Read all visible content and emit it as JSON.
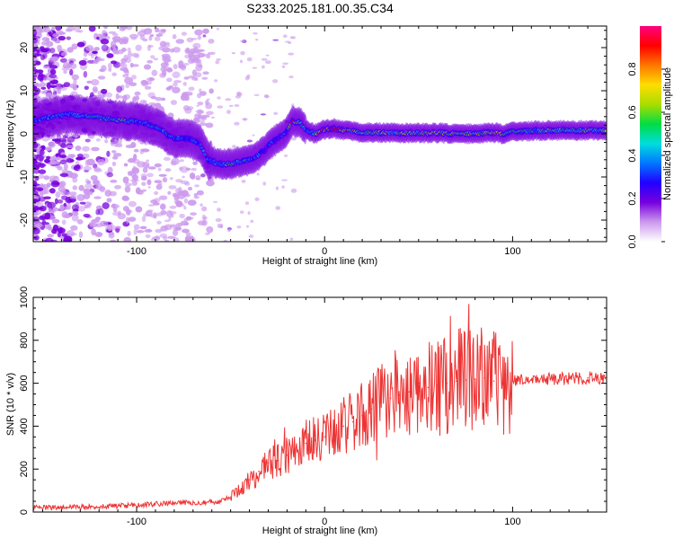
{
  "title": "S233.2025.181.00.35.C34",
  "chart_data": [
    {
      "type": "heatmap",
      "xlabel": "Height of straight line (km)",
      "ylabel": "Frequency (Hz)",
      "xlim": [
        -155,
        150
      ],
      "ylim": [
        -25,
        25
      ],
      "xticks": [
        -100,
        0,
        100
      ],
      "xtick_labels": [
        "-100",
        "0",
        "100"
      ],
      "yticks": [
        -20,
        -10,
        0,
        10,
        20
      ],
      "ytick_labels": [
        "-20",
        "-10",
        "0",
        "10",
        "20"
      ],
      "colorbar": {
        "label": "Normalized spectral amplitude",
        "range": [
          0,
          1
        ],
        "ticks": [
          0.0,
          0.2,
          0.4,
          0.6,
          0.8
        ],
        "tick_labels": [
          "0.0",
          "0.2",
          "0.4",
          "0.6",
          "0.8"
        ],
        "colors": [
          "#ffffff",
          "#cc99ee",
          "#7700dd",
          "#2200ff",
          "#0077ff",
          "#00dddd",
          "#00dd44",
          "#aadd00",
          "#ffdd00",
          "#ff7700",
          "#ff0000",
          "#ff0080"
        ]
      },
      "ridge": {
        "x": [
          -155,
          -145,
          -135,
          -125,
          -115,
          -105,
          -95,
          -88,
          -80,
          -72,
          -66,
          -62,
          -56,
          -50,
          -45,
          -40,
          -35,
          -30,
          -25,
          -20,
          -17,
          -13,
          -10,
          -5,
          0,
          5,
          10,
          20,
          40,
          60,
          80,
          90,
          95,
          100,
          110,
          120,
          150
        ],
        "y": [
          3,
          4,
          4.5,
          4,
          3.5,
          3,
          2.5,
          1,
          -1,
          -1,
          -2.5,
          -6,
          -7,
          -7,
          -6.5,
          -6,
          -5,
          -3,
          -1,
          0.5,
          3,
          2.5,
          1,
          0,
          1,
          1.2,
          0.8,
          0.3,
          0.2,
          0.2,
          0,
          0.3,
          0,
          0.5,
          0.7,
          0.8,
          0.8
        ],
        "intensity": [
          0.3,
          0.4,
          0.4,
          0.45,
          0.45,
          0.5,
          0.35,
          0.45,
          0.4,
          0.3,
          0.35,
          0.4,
          0.45,
          0.5,
          0.45,
          0.4,
          0.35,
          0.3,
          0.3,
          0.35,
          0.9,
          0.55,
          0.4,
          0.6,
          0.8,
          0.85,
          0.8,
          0.6,
          0.6,
          0.65,
          0.6,
          0.75,
          0.65,
          0.5,
          0.5,
          0.55,
          0.55
        ]
      }
    },
    {
      "type": "line",
      "xlabel": "Height of straight line (km)",
      "ylabel": "SNR (10 * v/v)",
      "xlim": [
        -155,
        150
      ],
      "ylim": [
        0,
        1000
      ],
      "xticks": [
        -100,
        0,
        100
      ],
      "xtick_labels": [
        "-100",
        "0",
        "100"
      ],
      "yticks": [
        0,
        200,
        400,
        600,
        800,
        1000
      ],
      "ytick_labels": [
        "0",
        "200",
        "400",
        "600",
        "800",
        "1000"
      ],
      "color": "#ee3333",
      "x": [
        -155,
        -145,
        -135,
        -125,
        -115,
        -105,
        -95,
        -85,
        -75,
        -65,
        -55,
        -50,
        -45,
        -40,
        -35,
        -30,
        -25,
        -20,
        -15,
        -10,
        -5,
        0,
        5,
        10,
        15,
        20,
        25,
        30,
        35,
        40,
        45,
        50,
        55,
        60,
        65,
        70,
        75,
        80,
        85,
        90,
        95,
        100,
        110,
        120,
        130,
        140,
        150
      ],
      "y": [
        20,
        22,
        25,
        25,
        28,
        30,
        35,
        40,
        45,
        45,
        50,
        70,
        100,
        150,
        190,
        230,
        240,
        265,
        300,
        320,
        335,
        350,
        370,
        400,
        420,
        450,
        480,
        510,
        530,
        545,
        560,
        600,
        580,
        590,
        600,
        610,
        615,
        620,
        625,
        610,
        600,
        610,
        615,
        620,
        620,
        625,
        630
      ]
    }
  ]
}
